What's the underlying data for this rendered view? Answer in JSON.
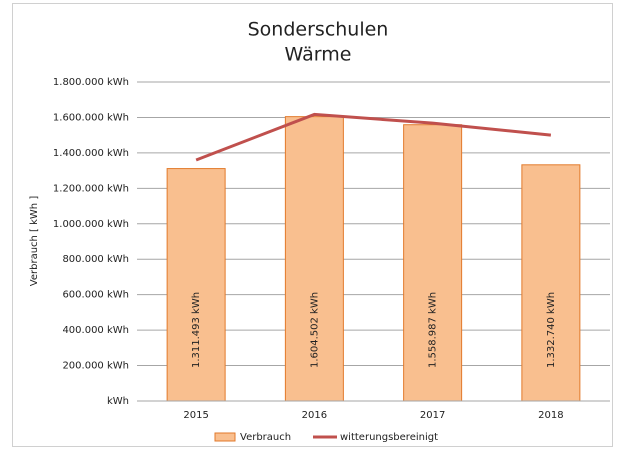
{
  "chart_data": {
    "type": "bar",
    "title": "Sonderschulen",
    "subtitle": "Wärme",
    "y_label": "Verbrauch [ kWh ]",
    "categories": [
      "2015",
      "2016",
      "2017",
      "2018"
    ],
    "series": [
      {
        "name": "Verbrauch",
        "type": "bar",
        "color": "#f9bf8f",
        "edge": "#e27a2b",
        "values": [
          1311493,
          1604502,
          1558987,
          1332740
        ],
        "value_labels": [
          "1.311.493 kWh",
          "1.604.502 kWh",
          "1.558.987 kWh",
          "1.332.740 kWh"
        ]
      },
      {
        "name": "witterungsbereinigt",
        "type": "line",
        "color": "#c0504d",
        "values": [
          1360000,
          1617000,
          1568000,
          1500000
        ]
      }
    ],
    "ylim": [
      0,
      1800000
    ],
    "yticks": [
      {
        "value": 0,
        "label": "kWh"
      },
      {
        "value": 200000,
        "label": "200.000 kWh"
      },
      {
        "value": 400000,
        "label": "400.000 kWh"
      },
      {
        "value": 600000,
        "label": "600.000 kWh"
      },
      {
        "value": 800000,
        "label": "800.000 kWh"
      },
      {
        "value": 1000000,
        "label": "1.000.000 kWh"
      },
      {
        "value": 1200000,
        "label": "1.200.000 kWh"
      },
      {
        "value": 1400000,
        "label": "1.400.000 kWh"
      },
      {
        "value": 1600000,
        "label": "1.600.000 kWh"
      },
      {
        "value": 1800000,
        "label": "1.800.000 kWh"
      }
    ],
    "grid": true,
    "legend": "bottom"
  }
}
